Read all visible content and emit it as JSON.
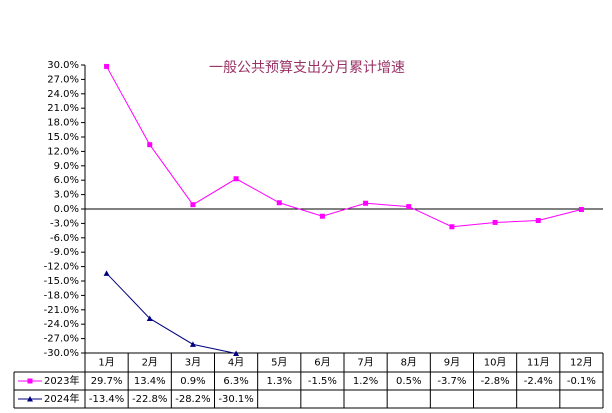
{
  "chart_data": {
    "type": "line",
    "title": "一般公共预算支出分月累计增速",
    "categories": [
      "1月",
      "2月",
      "3月",
      "4月",
      "5月",
      "6月",
      "7月",
      "8月",
      "9月",
      "10月",
      "11月",
      "12月"
    ],
    "series": [
      {
        "name": "2023年",
        "color": "#ff00ff",
        "marker": "square",
        "values": [
          29.7,
          13.4,
          0.9,
          6.3,
          1.3,
          -1.5,
          1.2,
          0.5,
          -3.7,
          -2.8,
          -2.4,
          -0.1
        ],
        "value_labels": [
          "29.7%",
          "13.4%",
          "0.9%",
          "6.3%",
          "1.3%",
          "-1.5%",
          "1.2%",
          "0.5%",
          "-3.7%",
          "-2.8%",
          "-2.4%",
          "-0.1%"
        ]
      },
      {
        "name": "2024年",
        "color": "#000080",
        "marker": "triangle",
        "values": [
          -13.4,
          -22.8,
          -28.2,
          -30.1,
          null,
          null,
          null,
          null,
          null,
          null,
          null,
          null
        ],
        "value_labels": [
          "-13.4%",
          "-22.8%",
          "-28.2%",
          "-30.1%",
          null,
          null,
          null,
          null,
          null,
          null,
          null,
          null
        ]
      }
    ],
    "ylim": [
      -30,
      30
    ],
    "yticks": [
      {
        "value": 30,
        "label": "30.0%"
      },
      {
        "value": 27,
        "label": "27.0%"
      },
      {
        "value": 24,
        "label": "24.0%"
      },
      {
        "value": 21,
        "label": "21.0%"
      },
      {
        "value": 18,
        "label": "18.0%"
      },
      {
        "value": 15,
        "label": "15.0%"
      },
      {
        "value": 12,
        "label": "12.0%"
      },
      {
        "value": 9,
        "label": "9.0%"
      },
      {
        "value": 6,
        "label": "6.0%"
      },
      {
        "value": 3,
        "label": "3.0%"
      },
      {
        "value": 0,
        "label": "0.0%"
      },
      {
        "value": -3,
        "label": "-3.0%"
      },
      {
        "value": -6,
        "label": "-6.0%"
      },
      {
        "value": -9,
        "label": "-9.0%"
      },
      {
        "value": -12,
        "label": "-12.0%"
      },
      {
        "value": -15,
        "label": "-15.0%"
      },
      {
        "value": -18,
        "label": "-18.0%"
      },
      {
        "value": -21,
        "label": "-21.0%"
      },
      {
        "value": -24,
        "label": "-24.0%"
      },
      {
        "value": -27,
        "label": "-27.0%"
      },
      {
        "value": -30,
        "label": "-30.0%"
      }
    ],
    "grid": false
  }
}
